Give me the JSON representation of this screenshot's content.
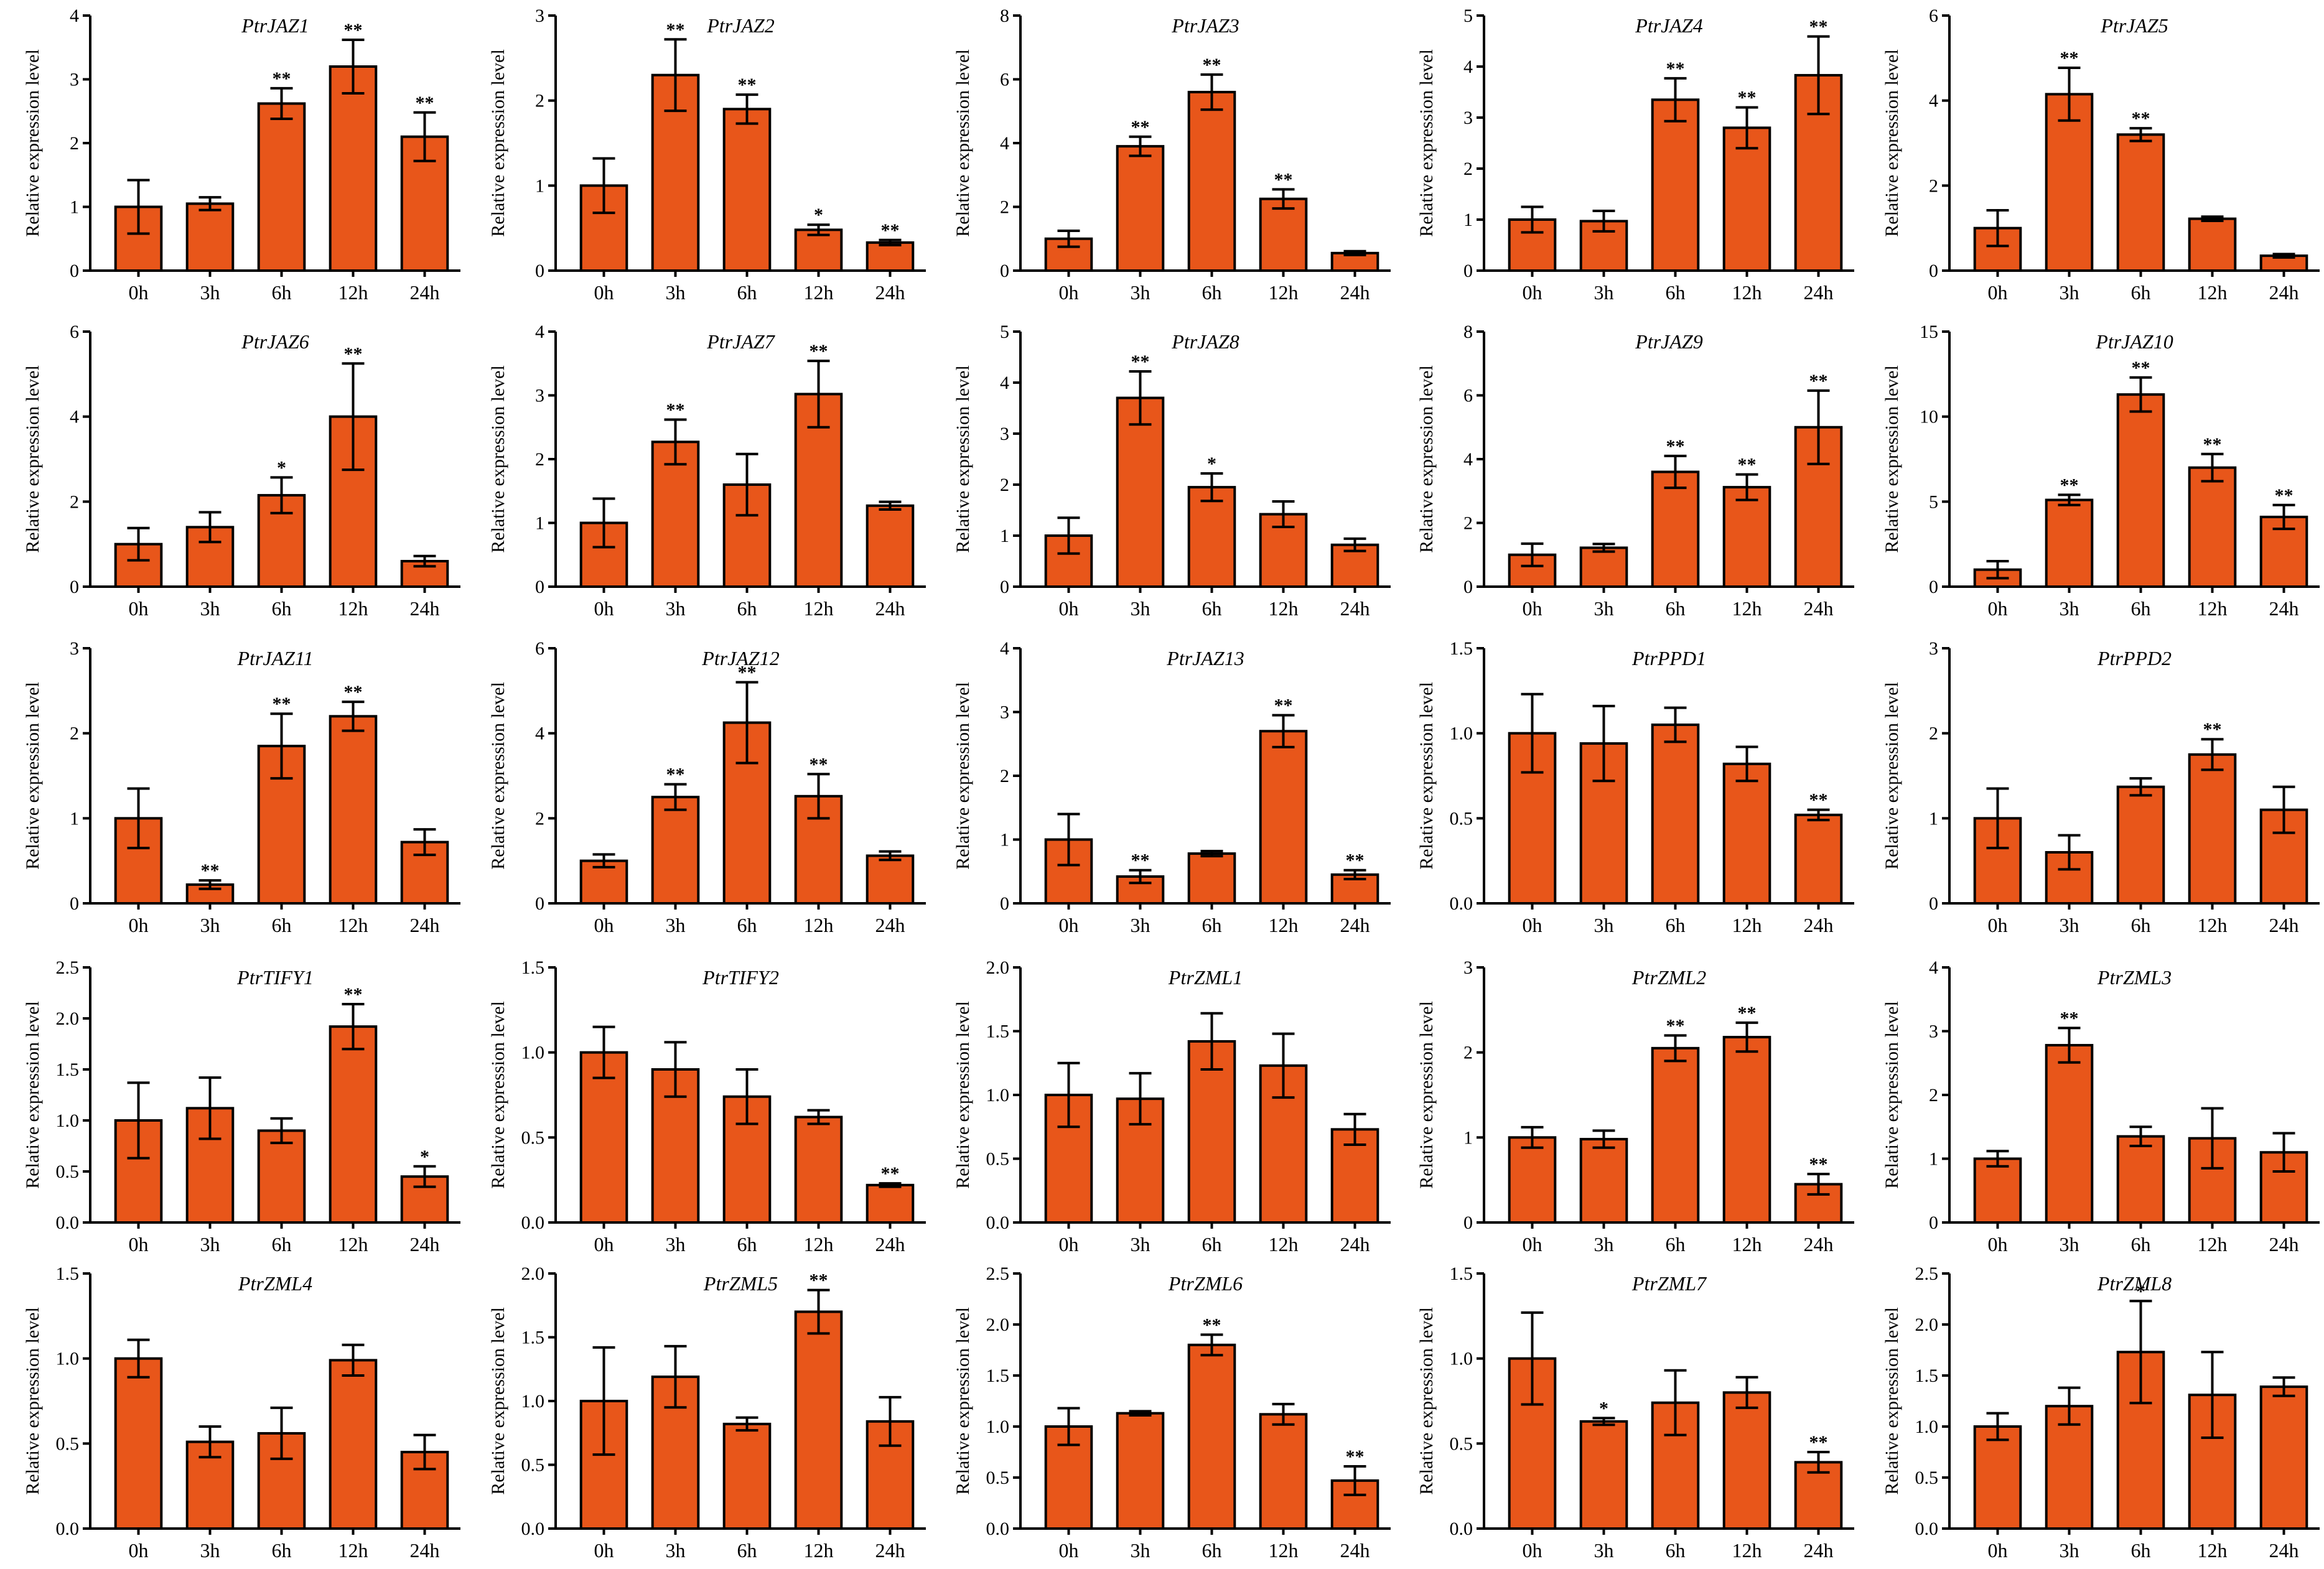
{
  "colors": {
    "bar": "#E8561A",
    "axis": "#000000"
  },
  "ylabel": "Relative expression level",
  "categories": [
    "0h",
    "3h",
    "6h",
    "12h",
    "24h"
  ],
  "chart_data": [
    {
      "type": "bar",
      "title": "PtrJAZ1",
      "ylim": [
        0,
        4
      ],
      "ticks": [
        "0",
        "1",
        "2",
        "3",
        "4"
      ],
      "values": [
        1.0,
        1.05,
        2.62,
        3.2,
        2.1
      ],
      "errors": [
        0.42,
        0.1,
        0.24,
        0.42,
        0.38
      ],
      "sig": [
        "",
        "",
        "**",
        "**",
        "**"
      ]
    },
    {
      "type": "bar",
      "title": "PtrJAZ2",
      "ylim": [
        0,
        3
      ],
      "ticks": [
        "0",
        "1",
        "2",
        "3"
      ],
      "values": [
        1.0,
        2.3,
        1.9,
        0.48,
        0.33
      ],
      "errors": [
        0.32,
        0.42,
        0.17,
        0.06,
        0.03
      ],
      "sig": [
        "",
        "**",
        "**",
        "*",
        "**"
      ]
    },
    {
      "type": "bar",
      "title": "PtrJAZ3",
      "ylim": [
        0,
        8
      ],
      "ticks": [
        "0",
        "2",
        "4",
        "6",
        "8"
      ],
      "values": [
        1.0,
        3.9,
        5.6,
        2.25,
        0.55
      ],
      "errors": [
        0.25,
        0.3,
        0.55,
        0.3,
        0.06
      ],
      "sig": [
        "",
        "**",
        "**",
        "**",
        ""
      ]
    },
    {
      "type": "bar",
      "title": "PtrJAZ4",
      "ylim": [
        0,
        5
      ],
      "ticks": [
        "0",
        "1",
        "2",
        "3",
        "4",
        "5"
      ],
      "values": [
        1.0,
        0.97,
        3.35,
        2.8,
        3.83
      ],
      "errors": [
        0.25,
        0.2,
        0.42,
        0.4,
        0.76
      ],
      "sig": [
        "",
        "",
        "**",
        "**",
        "**"
      ]
    },
    {
      "type": "bar",
      "title": "PtrJAZ5",
      "ylim": [
        0,
        6
      ],
      "ticks": [
        "0",
        "2",
        "4",
        "6"
      ],
      "values": [
        1.0,
        4.15,
        3.2,
        1.22,
        0.35
      ],
      "errors": [
        0.42,
        0.62,
        0.15,
        0.05,
        0.04
      ],
      "sig": [
        "",
        "**",
        "**",
        "",
        ""
      ]
    },
    {
      "type": "bar",
      "title": "PtrJAZ6",
      "ylim": [
        0,
        6
      ],
      "ticks": [
        "0",
        "2",
        "4",
        "6"
      ],
      "values": [
        1.0,
        1.4,
        2.15,
        4.0,
        0.6
      ],
      "errors": [
        0.38,
        0.35,
        0.42,
        1.25,
        0.12
      ],
      "sig": [
        "",
        "",
        "*",
        "**",
        ""
      ]
    },
    {
      "type": "bar",
      "title": "PtrJAZ7",
      "ylim": [
        0,
        4
      ],
      "ticks": [
        "0",
        "1",
        "2",
        "3",
        "4"
      ],
      "values": [
        1.0,
        2.27,
        1.6,
        3.02,
        1.27
      ],
      "errors": [
        0.38,
        0.35,
        0.48,
        0.52,
        0.06
      ],
      "sig": [
        "",
        "**",
        "",
        "**",
        ""
      ]
    },
    {
      "type": "bar",
      "title": "PtrJAZ8",
      "ylim": [
        0,
        5
      ],
      "ticks": [
        "0",
        "1",
        "2",
        "3",
        "4",
        "5"
      ],
      "values": [
        1.0,
        3.7,
        1.95,
        1.42,
        0.82
      ],
      "errors": [
        0.35,
        0.52,
        0.27,
        0.25,
        0.12
      ],
      "sig": [
        "",
        "**",
        "*",
        "",
        ""
      ]
    },
    {
      "type": "bar",
      "title": "PtrJAZ9",
      "ylim": [
        0,
        8
      ],
      "ticks": [
        "0",
        "2",
        "4",
        "6",
        "8"
      ],
      "values": [
        1.0,
        1.22,
        3.6,
        3.12,
        5.0
      ],
      "errors": [
        0.35,
        0.12,
        0.5,
        0.4,
        1.15
      ],
      "sig": [
        "",
        "",
        "**",
        "**",
        "**"
      ]
    },
    {
      "type": "bar",
      "title": "PtrJAZ10",
      "ylim": [
        0,
        15
      ],
      "ticks": [
        "0",
        "5",
        "10",
        "15"
      ],
      "values": [
        1.0,
        5.1,
        11.3,
        7.0,
        4.1
      ],
      "errors": [
        0.5,
        0.3,
        1.0,
        0.8,
        0.7
      ],
      "sig": [
        "",
        "**",
        "**",
        "**",
        "**"
      ]
    },
    {
      "type": "bar",
      "title": "PtrJAZ11",
      "ylim": [
        0,
        3
      ],
      "ticks": [
        "0",
        "1",
        "2",
        "3"
      ],
      "values": [
        1.0,
        0.22,
        1.85,
        2.2,
        0.72
      ],
      "errors": [
        0.35,
        0.05,
        0.38,
        0.17,
        0.15
      ],
      "sig": [
        "",
        "**",
        "**",
        "**",
        ""
      ]
    },
    {
      "type": "bar",
      "title": "PtrJAZ12",
      "ylim": [
        0,
        6
      ],
      "ticks": [
        "0",
        "2",
        "4",
        "6"
      ],
      "values": [
        1.0,
        2.5,
        4.25,
        2.52,
        1.12
      ],
      "errors": [
        0.15,
        0.3,
        0.95,
        0.52,
        0.1
      ],
      "sig": [
        "",
        "**",
        "**",
        "**",
        ""
      ]
    },
    {
      "type": "bar",
      "title": "PtrJAZ13",
      "ylim": [
        0,
        4
      ],
      "ticks": [
        "0",
        "1",
        "2",
        "3",
        "4"
      ],
      "values": [
        1.0,
        0.42,
        0.78,
        2.7,
        0.45
      ],
      "errors": [
        0.4,
        0.1,
        0.04,
        0.25,
        0.07
      ],
      "sig": [
        "",
        "**",
        "",
        "**",
        "**"
      ]
    },
    {
      "type": "bar",
      "title": "PtrPPD1",
      "ylim": [
        0,
        1.5
      ],
      "ticks": [
        "0.0",
        "0.5",
        "1.0",
        "1.5"
      ],
      "values": [
        1.0,
        0.94,
        1.05,
        0.82,
        0.52
      ],
      "errors": [
        0.23,
        0.22,
        0.1,
        0.1,
        0.03
      ],
      "sig": [
        "",
        "",
        "",
        "",
        "**"
      ]
    },
    {
      "type": "bar",
      "title": "PtrPPD2",
      "ylim": [
        0,
        3
      ],
      "ticks": [
        "0",
        "1",
        "2",
        "3"
      ],
      "values": [
        1.0,
        0.6,
        1.37,
        1.75,
        1.1
      ],
      "errors": [
        0.35,
        0.2,
        0.1,
        0.18,
        0.27
      ],
      "sig": [
        "",
        "",
        "",
        "**",
        ""
      ]
    },
    {
      "type": "bar",
      "title": "PtrTIFY1",
      "ylim": [
        0,
        2.5
      ],
      "ticks": [
        "0.0",
        "0.5",
        "1.0",
        "1.5",
        "2.0",
        "2.5"
      ],
      "values": [
        1.0,
        1.12,
        0.9,
        1.92,
        0.45
      ],
      "errors": [
        0.37,
        0.3,
        0.12,
        0.22,
        0.1
      ],
      "sig": [
        "",
        "",
        "",
        "**",
        "*"
      ]
    },
    {
      "type": "bar",
      "title": "PtrTIFY2",
      "ylim": [
        0,
        1.5
      ],
      "ticks": [
        "0.0",
        "0.5",
        "1.0",
        "1.5"
      ],
      "values": [
        1.0,
        0.9,
        0.74,
        0.62,
        0.22
      ],
      "errors": [
        0.15,
        0.16,
        0.16,
        0.04,
        0.01
      ],
      "sig": [
        "",
        "",
        "",
        "",
        "**"
      ]
    },
    {
      "type": "bar",
      "title": "PtrZML1",
      "ylim": [
        0,
        2.0
      ],
      "ticks": [
        "0.0",
        "0.5",
        "1.0",
        "1.5",
        "2.0"
      ],
      "values": [
        1.0,
        0.97,
        1.42,
        1.23,
        0.73
      ],
      "errors": [
        0.25,
        0.2,
        0.22,
        0.25,
        0.12
      ],
      "sig": [
        "",
        "",
        "",
        "",
        ""
      ]
    },
    {
      "type": "bar",
      "title": "PtrZML2",
      "ylim": [
        0,
        3
      ],
      "ticks": [
        "0",
        "1",
        "2",
        "3"
      ],
      "values": [
        1.0,
        0.98,
        2.05,
        2.18,
        0.45
      ],
      "errors": [
        0.12,
        0.1,
        0.15,
        0.17,
        0.12
      ],
      "sig": [
        "",
        "",
        "**",
        "**",
        "**"
      ]
    },
    {
      "type": "bar",
      "title": "PtrZML3",
      "ylim": [
        0,
        4
      ],
      "ticks": [
        "0",
        "1",
        "2",
        "3",
        "4"
      ],
      "values": [
        1.0,
        2.78,
        1.35,
        1.32,
        1.1
      ],
      "errors": [
        0.12,
        0.27,
        0.15,
        0.47,
        0.3
      ],
      "sig": [
        "",
        "**",
        "",
        "",
        ""
      ]
    },
    {
      "type": "bar",
      "title": "PtrZML4",
      "ylim": [
        0,
        1.5
      ],
      "ticks": [
        "0.0",
        "0.5",
        "1.0",
        "1.5"
      ],
      "values": [
        1.0,
        0.51,
        0.56,
        0.99,
        0.45
      ],
      "errors": [
        0.11,
        0.09,
        0.15,
        0.09,
        0.1
      ],
      "sig": [
        "",
        "",
        "",
        "",
        ""
      ]
    },
    {
      "type": "bar",
      "title": "PtrZML5",
      "ylim": [
        0,
        2.0
      ],
      "ticks": [
        "0.0",
        "0.5",
        "1.0",
        "1.5",
        "2.0"
      ],
      "values": [
        1.0,
        1.19,
        0.82,
        1.7,
        0.84
      ],
      "errors": [
        0.42,
        0.24,
        0.05,
        0.17,
        0.19
      ],
      "sig": [
        "",
        "",
        "",
        "**",
        ""
      ]
    },
    {
      "type": "bar",
      "title": "PtrZML6",
      "ylim": [
        0,
        2.5
      ],
      "ticks": [
        "0.0",
        "0.5",
        "1.0",
        "1.5",
        "2.0",
        "2.5"
      ],
      "values": [
        1.0,
        1.13,
        1.8,
        1.12,
        0.47
      ],
      "errors": [
        0.18,
        0.02,
        0.1,
        0.1,
        0.14
      ],
      "sig": [
        "",
        "",
        "**",
        "",
        "**"
      ]
    },
    {
      "type": "bar",
      "title": "PtrZML7",
      "ylim": [
        0,
        1.5
      ],
      "ticks": [
        "0.0",
        "0.5",
        "1.0",
        "1.5"
      ],
      "values": [
        1.0,
        0.63,
        0.74,
        0.8,
        0.39
      ],
      "errors": [
        0.27,
        0.02,
        0.19,
        0.09,
        0.06
      ],
      "sig": [
        "",
        "*",
        "",
        "",
        "**"
      ]
    },
    {
      "type": "bar",
      "title": "PtrZML8",
      "ylim": [
        0,
        2.5
      ],
      "ticks": [
        "0.0",
        "0.5",
        "1.0",
        "1.5",
        "2.0",
        "2.5"
      ],
      "values": [
        1.0,
        1.2,
        1.73,
        1.31,
        1.39
      ],
      "errors": [
        0.13,
        0.18,
        0.5,
        0.42,
        0.09
      ],
      "sig": [
        "",
        "",
        "*",
        "",
        ""
      ]
    }
  ]
}
